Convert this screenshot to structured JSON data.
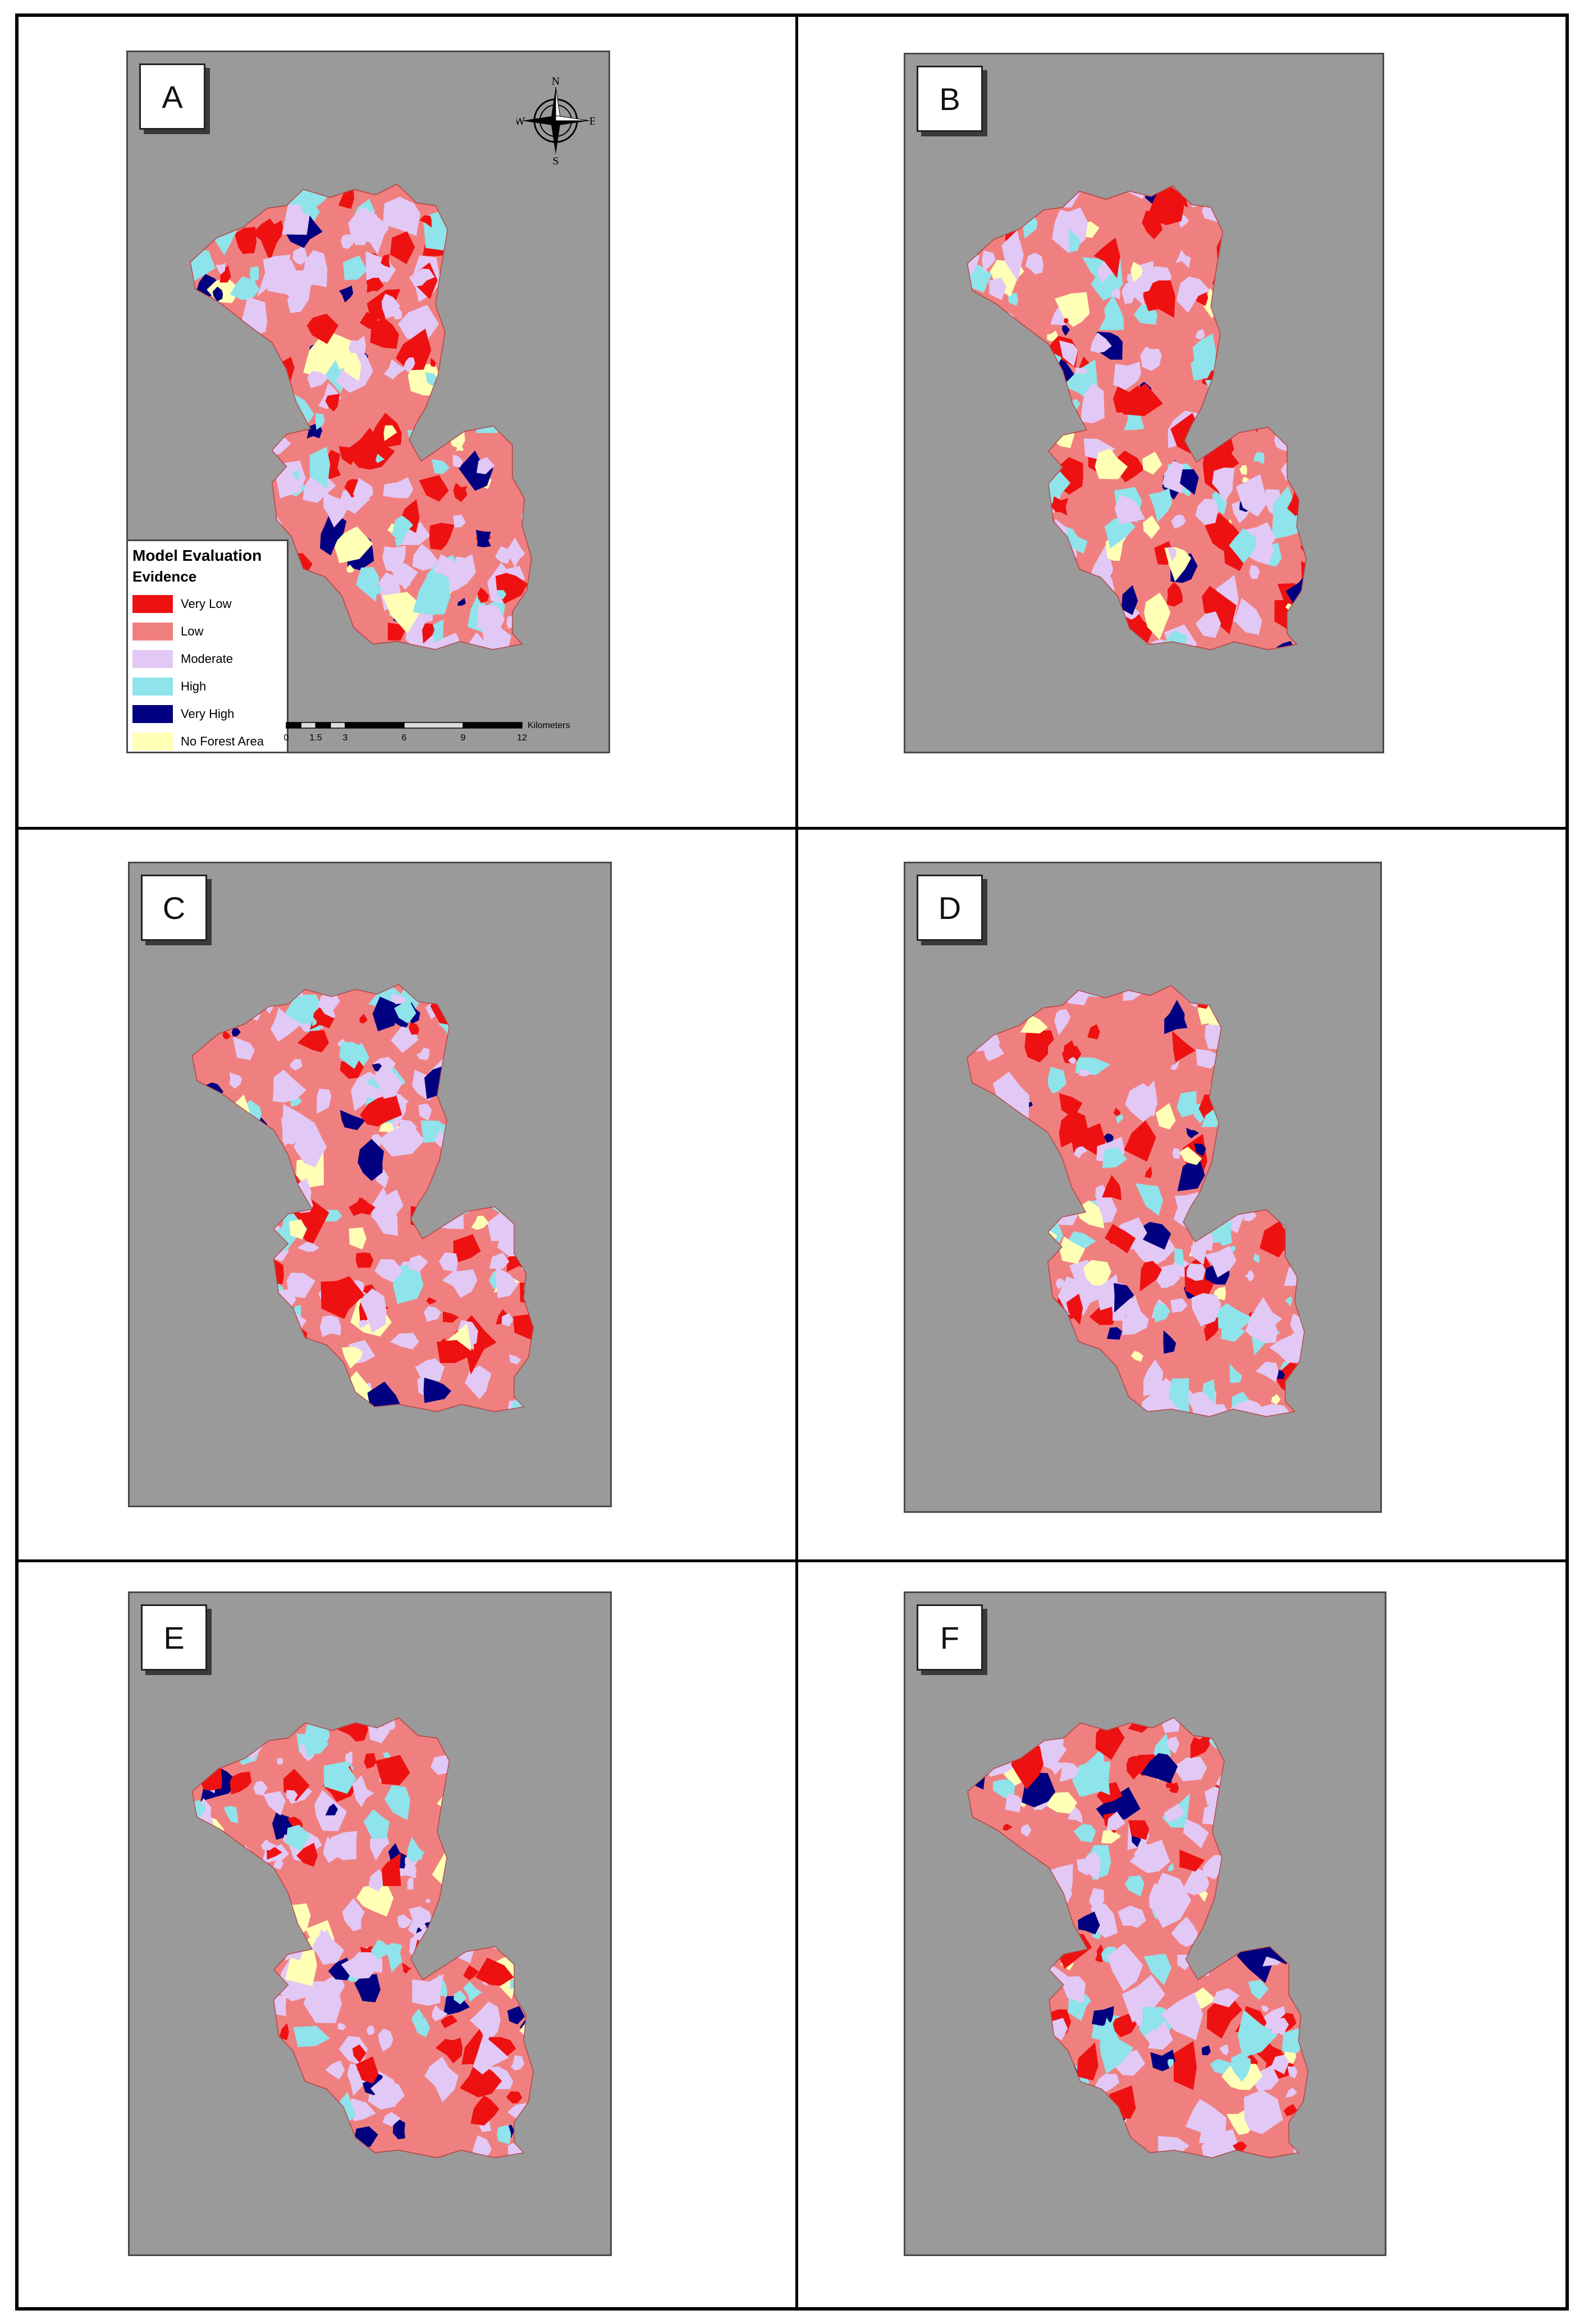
{
  "panels": [
    {
      "label": "A",
      "frame": [
        225,
        90,
        862,
        1252
      ],
      "legend": true,
      "compass": true
    },
    {
      "label": "B",
      "frame": [
        1610,
        94,
        856,
        1248
      ],
      "legend": false,
      "compass": false
    },
    {
      "label": "C",
      "frame": [
        228,
        1535,
        862,
        1150
      ],
      "legend": false,
      "compass": false
    },
    {
      "label": "D",
      "frame": [
        1610,
        1535,
        852,
        1160
      ],
      "legend": false,
      "compass": false
    },
    {
      "label": "E",
      "frame": [
        228,
        2835,
        862,
        1184
      ],
      "legend": false,
      "compass": false
    },
    {
      "label": "F",
      "frame": [
        1610,
        2835,
        860,
        1184
      ],
      "legend": false,
      "compass": false
    }
  ],
  "legend": {
    "title": "Model Evaluation",
    "subtitle": "Evidence",
    "items": [
      {
        "label": "Very Low",
        "color": "#ee1111"
      },
      {
        "label": "Low",
        "color": "#f08080"
      },
      {
        "label": "Moderate",
        "color": "#e2c8f5"
      },
      {
        "label": "High",
        "color": "#8fe3ea"
      },
      {
        "label": "Very High",
        "color": "#000080"
      },
      {
        "label": "No Forest Area",
        "color": "#ffffb5"
      }
    ]
  },
  "compass": {
    "n": "N",
    "s": "S",
    "e": "E",
    "w": "W"
  },
  "scale": {
    "unit": "Kilometers",
    "ticks": [
      "0",
      "1.5",
      "3",
      "6",
      "9",
      "12"
    ]
  }
}
